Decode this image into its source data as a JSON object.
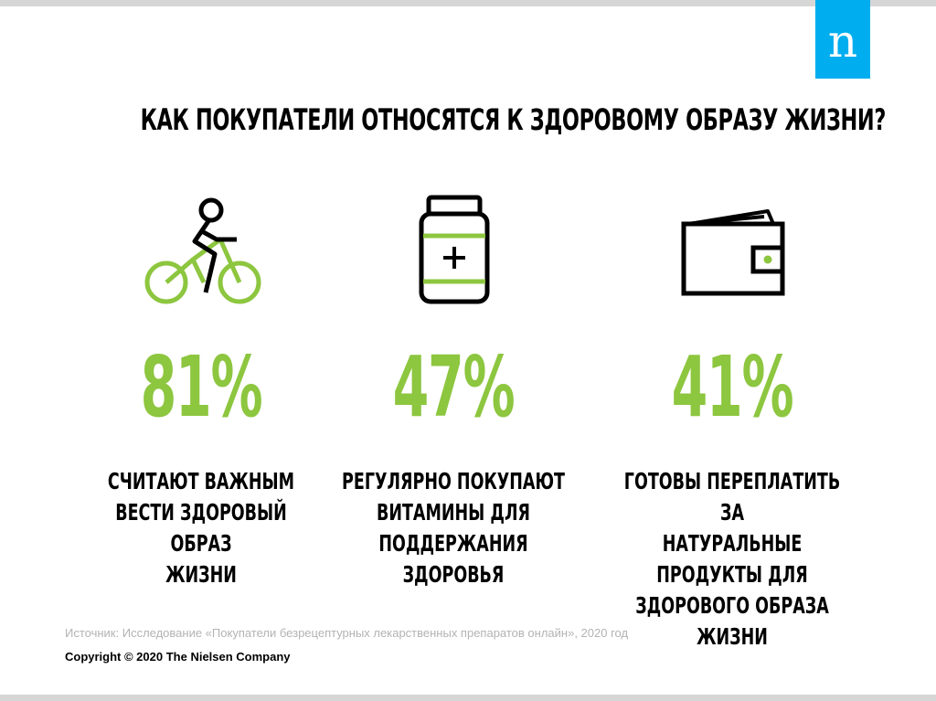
{
  "brand": {
    "logo_letter": "n",
    "logo_color": "#00aeef"
  },
  "title": "КАК ПОКУПАТЕЛИ ОТНОСЯТСЯ К ЗДОРОВОМУ ОБРАЗУ ЖИЗНИ?",
  "accent_color": "#8dc63f",
  "stats": [
    {
      "icon": "bicycle-icon",
      "value": "81%",
      "lines": [
        "СЧИТАЮТ ВАЖНЫМ",
        "ВЕСТИ ЗДОРОВЫЙ ОБРАЗ",
        "ЖИЗНИ"
      ]
    },
    {
      "icon": "vitamin-jar-icon",
      "value": "47%",
      "lines": [
        "РЕГУЛЯРНО ПОКУПАЮТ",
        "ВИТАМИНЫ ДЛЯ",
        "ПОДДЕРЖАНИЯ ЗДОРОВЬЯ"
      ]
    },
    {
      "icon": "wallet-icon",
      "value": "41%",
      "lines": [
        "ГОТОВЫ ПЕРЕПЛАТИТЬ ЗА",
        "НАТУРАЛЬНЫЕ ПРОДУКТЫ ДЛЯ",
        "ЗДОРОВОГО ОБРАЗА ЖИЗНИ"
      ]
    }
  ],
  "footer": {
    "source": "Источник: Исследование «Покупатели безрецептурных лекарственных препаратов онлайн», 2020 год",
    "copyright": "Copyright © 2020 The Nielsen Company"
  }
}
